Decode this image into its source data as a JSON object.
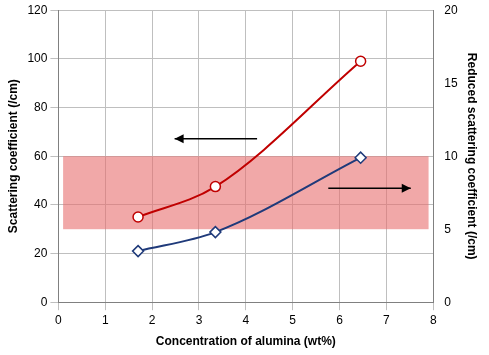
{
  "chart_data": {
    "type": "line",
    "x_label": "Concentration of alumina (wt%)",
    "y_label": "Scattering coefficient (/cm)",
    "y2_label": "Reduced scattering coefficient (/cm)",
    "series": [
      {
        "color": "#c00000",
        "marker": "circle",
        "line_style": "solid",
        "x": [
          1.7,
          3.35,
          6.45
        ],
        "values": [
          35,
          47.5,
          99
        ]
      },
      {
        "color": "#1f3a7a",
        "marker": "diamond",
        "line_style": "solid",
        "axis": "y2",
        "x": [
          1.7,
          3.35,
          6.45
        ],
        "values": [
          3.5,
          4.8,
          9.9
        ]
      }
    ],
    "band": {
      "x": [
        0.1,
        7.9
      ],
      "y2": [
        5,
        10
      ]
    },
    "xlim": [
      0,
      8
    ],
    "xticks": [
      0,
      1,
      2,
      3,
      4,
      5,
      6,
      7,
      8
    ],
    "ylim": [
      0,
      120
    ],
    "yticks": [
      0,
      20,
      40,
      60,
      80,
      100,
      120
    ],
    "y2lim": [
      0,
      20
    ],
    "y2ticks": [
      0,
      5,
      10,
      15,
      20
    ],
    "grid": true
  }
}
